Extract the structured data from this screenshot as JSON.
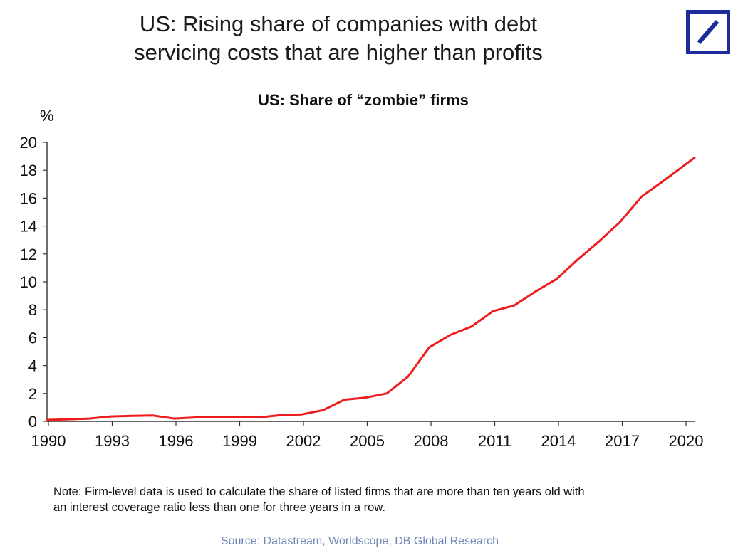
{
  "header": {
    "headline_line1": "US: Rising share of companies with debt",
    "headline_line2": "servicing costs that are higher than profits",
    "logo_icon": "deutsche-bank-slash-logo-icon"
  },
  "colors": {
    "series_line": "#ee1c1c",
    "logo_blue": "#1e2c9b",
    "source_text": "#6f86b6"
  },
  "chart_data": {
    "type": "line",
    "title": "US: Share of “zombie” firms",
    "ylabel": "%",
    "xlabel": "",
    "ylim": [
      0,
      20
    ],
    "yticks": [
      0,
      2,
      4,
      6,
      8,
      10,
      12,
      14,
      16,
      18,
      20
    ],
    "xlim": [
      1990,
      2020.5
    ],
    "xtick_labels": [
      "1990",
      "1993",
      "1996",
      "1999",
      "2002",
      "2005",
      "2008",
      "2011",
      "2014",
      "2017",
      "2020"
    ],
    "grid": false,
    "legend": "none",
    "series": [
      {
        "x": [
          1990,
          1991,
          1992,
          1993,
          1994,
          1995,
          1996,
          1997,
          1998,
          1999,
          2000,
          2001,
          2002,
          2003,
          2004,
          2005,
          2006,
          2007,
          2008,
          2009,
          2010,
          2011,
          2012,
          2013,
          2014,
          2015,
          2016,
          2017,
          2018,
          2019,
          2020.5
        ],
        "y": [
          0.1,
          0.15,
          0.2,
          0.35,
          0.4,
          0.42,
          0.2,
          0.28,
          0.3,
          0.28,
          0.28,
          0.45,
          0.5,
          0.8,
          1.55,
          1.7,
          2.0,
          3.2,
          5.3,
          6.2,
          6.8,
          7.9,
          8.3,
          9.3,
          10.2,
          11.6,
          12.9,
          14.3,
          16.1,
          17.2,
          18.9
        ]
      }
    ]
  },
  "footer": {
    "note_line1": "Note: Firm-level data is used to calculate the share of listed firms that are more than ten years old with",
    "note_line2": "an interest coverage ratio less than one for three years in a row.",
    "source": "Source: Datastream, Worldscope, DB Global Research"
  }
}
